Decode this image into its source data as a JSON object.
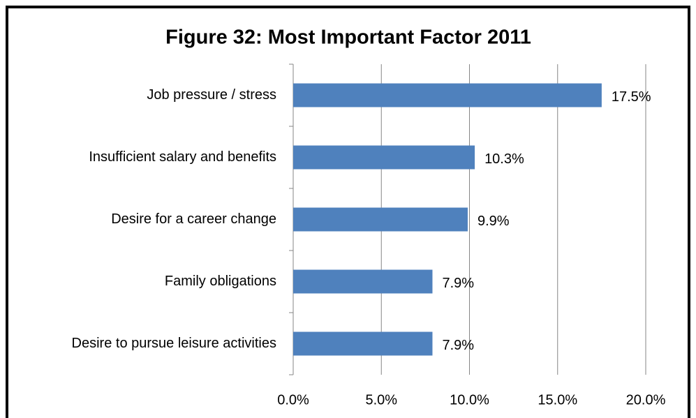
{
  "chart_data": {
    "type": "bar",
    "orientation": "horizontal",
    "title": "Figure 32: Most Important Factor 2011",
    "categories": [
      "Job pressure / stress",
      "Insufficient salary and benefits",
      "Desire for a career change",
      "Family obligations",
      "Desire to pursue leisure activities"
    ],
    "values": [
      17.5,
      10.3,
      9.9,
      7.9,
      7.9
    ],
    "value_labels": [
      "17.5%",
      "10.3%",
      "9.9%",
      "7.9%",
      "7.9%"
    ],
    "color": "#4f81bd",
    "xlim": [
      0,
      20
    ],
    "xticks": [
      {
        "value": 0,
        "label": "0.0%"
      },
      {
        "value": 5,
        "label": "5.0%"
      },
      {
        "value": 10,
        "label": "10.0%"
      },
      {
        "value": 15,
        "label": "15.0%"
      },
      {
        "value": 20,
        "label": "20.0%"
      }
    ],
    "grid": true
  }
}
